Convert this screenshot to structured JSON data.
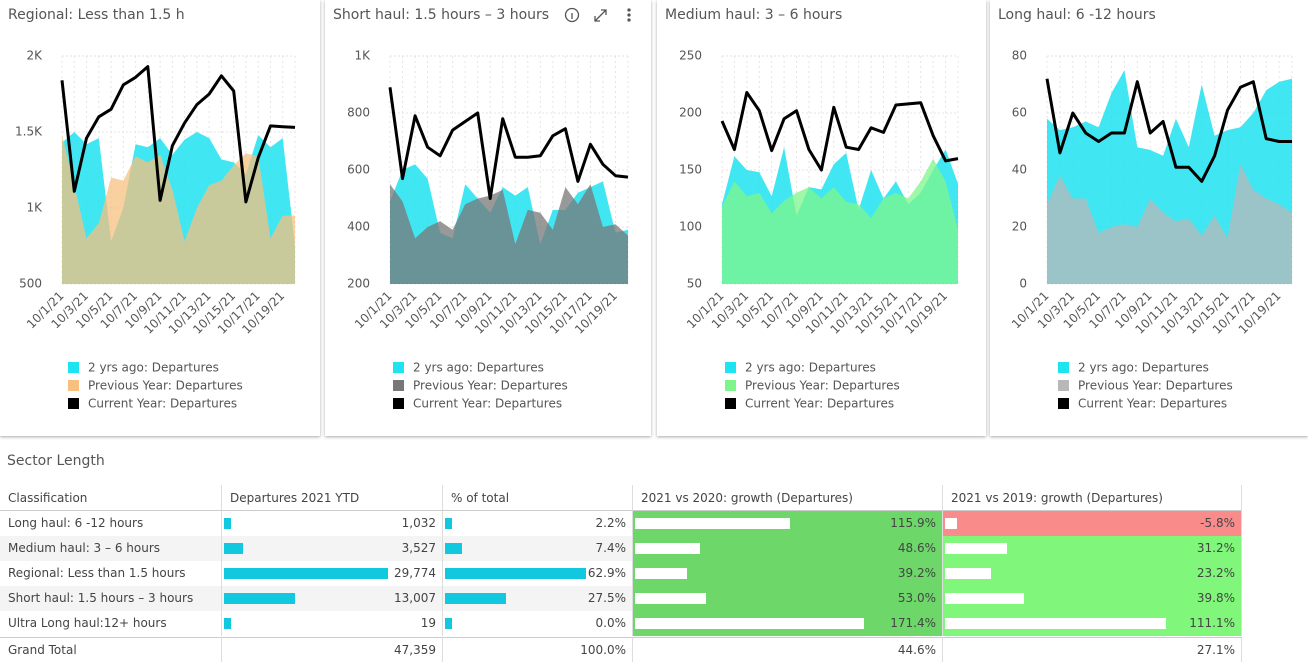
{
  "chart_data": [
    {
      "type": "area",
      "title": "Regional: Less than 1.5 h",
      "categories": [
        "10/1/21",
        null,
        "10/3/21",
        null,
        "10/5/21",
        null,
        "10/7/21",
        null,
        "10/9/21",
        null,
        "10/11/21",
        null,
        "10/13/21",
        null,
        "10/15/21",
        null,
        "10/17/21",
        null,
        "10/19/21",
        null
      ],
      "ylim": [
        500,
        2000
      ],
      "yticks": [
        500,
        {
          "value": 1000,
          "label": "1K"
        },
        {
          "value": 1500,
          "label": "1.5K"
        },
        {
          "value": 2000,
          "label": "2K"
        }
      ],
      "grid": true,
      "series": [
        {
          "name": "2 yrs ago: Departures",
          "color": "#1ee3f0",
          "values": [
            1430,
            1500,
            1420,
            1460,
            780,
            1000,
            1420,
            1400,
            1460,
            1350,
            1450,
            1500,
            1460,
            1320,
            1300,
            1220,
            1480,
            1400,
            1460,
            750
          ]
        },
        {
          "name": "Previous Year: Departures",
          "color": "#f7c07f",
          "values": [
            1480,
            1150,
            800,
            900,
            1200,
            1180,
            1340,
            1300,
            1350,
            1120,
            780,
            1000,
            1150,
            1180,
            1280,
            1360,
            1340,
            800,
            950,
            950
          ]
        },
        {
          "name": "Current Year: Departures",
          "color": "#000000",
          "style": "line",
          "values": [
            1840,
            1110,
            1460,
            1600,
            1650,
            1810,
            1860,
            1930,
            1050,
            1410,
            1560,
            1680,
            1750,
            1870,
            1770,
            1040,
            1330,
            1540,
            1535,
            1530
          ]
        }
      ]
    },
    {
      "type": "area",
      "title": "Short haul: 1.5 hours – 3 hours",
      "categories": [
        "10/1/21",
        null,
        "10/3/21",
        null,
        "10/5/21",
        null,
        "10/7/21",
        null,
        "10/9/21",
        null,
        "10/11/21",
        null,
        "10/13/21",
        null,
        "10/15/21",
        null,
        "10/17/21",
        null,
        "10/19/21",
        null
      ],
      "ylim": [
        200,
        1000
      ],
      "yticks": [
        200,
        400,
        600,
        800,
        {
          "value": 1000,
          "label": "1K"
        }
      ],
      "grid": true,
      "series": [
        {
          "name": "2 yrs ago: Departures",
          "color": "#1ee3f0",
          "values": [
            490,
            600,
            620,
            570,
            380,
            360,
            550,
            500,
            450,
            540,
            510,
            540,
            340,
            460,
            460,
            520,
            540,
            560,
            380,
            390
          ]
        },
        {
          "name": "Previous Year: Departures",
          "color": "#777777",
          "values": [
            550,
            490,
            360,
            400,
            420,
            390,
            480,
            500,
            510,
            530,
            340,
            460,
            450,
            390,
            540,
            480,
            550,
            400,
            410,
            370
          ]
        },
        {
          "name": "Current Year: Departures",
          "color": "#000000",
          "style": "line",
          "values": [
            890,
            570,
            790,
            680,
            650,
            740,
            770,
            800,
            500,
            780,
            645,
            645,
            650,
            720,
            745,
            560,
            690,
            620,
            580,
            575
          ]
        }
      ]
    },
    {
      "type": "area",
      "title": "Medium haul: 3 – 6 hours",
      "categories": [
        "10/1/21",
        null,
        "10/3/21",
        null,
        "10/5/21",
        null,
        "10/7/21",
        null,
        "10/9/21",
        null,
        "10/11/21",
        null,
        "10/13/21",
        null,
        "10/15/21",
        null,
        "10/17/21",
        null,
        "10/19/21",
        null
      ],
      "ylim": [
        50,
        250
      ],
      "yticks": [
        50,
        100,
        150,
        200,
        250
      ],
      "grid": true,
      "series": [
        {
          "name": "2 yrs ago: Departures",
          "color": "#1ee3f0",
          "values": [
            120,
            162,
            150,
            148,
            127,
            170,
            110,
            135,
            133,
            155,
            165,
            115,
            150,
            125,
            140,
            120,
            130,
            150,
            168,
            138
          ]
        },
        {
          "name": "Previous Year: Departures",
          "color": "#7ef58a",
          "values": [
            118,
            140,
            127,
            130,
            112,
            123,
            130,
            135,
            125,
            135,
            122,
            120,
            108,
            125,
            130,
            125,
            140,
            160,
            140,
            98
          ]
        },
        {
          "name": "Current Year: Departures",
          "color": "#000000",
          "style": "line",
          "values": [
            193,
            168,
            218,
            202,
            167,
            195,
            202,
            168,
            150,
            205,
            170,
            168,
            187,
            183,
            207,
            208,
            209,
            180,
            158,
            160
          ]
        }
      ]
    },
    {
      "type": "area",
      "title": "Long haul: 6 -12 hours",
      "categories": [
        "10/1/21",
        null,
        "10/3/21",
        null,
        "10/5/21",
        null,
        "10/7/21",
        null,
        "10/9/21",
        null,
        "10/11/21",
        null,
        "10/13/21",
        null,
        "10/15/21",
        null,
        "10/17/21",
        null,
        "10/19/21",
        null
      ],
      "ylim": [
        0,
        80
      ],
      "yticks": [
        0,
        20,
        40,
        60,
        80
      ],
      "grid": true,
      "series": [
        {
          "name": "2 yrs ago: Departures",
          "color": "#1ee3f0",
          "values": [
            58,
            54,
            55,
            57,
            55,
            67,
            75,
            48,
            47,
            45,
            58,
            48,
            70,
            52,
            54,
            55,
            60,
            68,
            71,
            72
          ]
        },
        {
          "name": "Previous Year: Departures",
          "color": "#b8b8b8",
          "values": [
            28,
            38,
            30,
            30,
            18,
            20,
            21,
            20,
            30,
            25,
            22,
            23,
            17,
            24,
            16,
            42,
            33,
            30,
            28,
            25
          ]
        },
        {
          "name": "Current Year: Departures",
          "color": "#000000",
          "style": "line",
          "values": [
            72,
            46,
            60,
            53,
            50,
            53,
            53,
            71,
            53,
            57,
            41,
            41,
            36,
            45,
            61,
            69,
            71,
            51,
            50,
            50
          ]
        }
      ]
    }
  ],
  "table": {
    "title": "Sector Length",
    "columns": [
      "Classification",
      "Departures 2021 YTD",
      "% of total",
      "2021 vs 2020: growth (Departures)",
      "2021 vs 2019: growth (Departures)"
    ],
    "rows": [
      [
        "Long haul: 6 -12 hours",
        {
          "value": 1032,
          "label": "1,032"
        },
        {
          "value": 2.2,
          "label": "2.2%"
        },
        {
          "value": 115.9,
          "label": "115.9%"
        },
        {
          "value": -5.8,
          "label": "-5.8%"
        }
      ],
      [
        "Medium haul: 3 – 6 hours",
        {
          "value": 3527,
          "label": "3,527"
        },
        {
          "value": 7.4,
          "label": "7.4%"
        },
        {
          "value": 48.6,
          "label": "48.6%"
        },
        {
          "value": 31.2,
          "label": "31.2%"
        }
      ],
      [
        "Regional: Less than 1.5 hours",
        {
          "value": 29774,
          "label": "29,774"
        },
        {
          "value": 62.9,
          "label": "62.9%"
        },
        {
          "value": 39.2,
          "label": "39.2%"
        },
        {
          "value": 23.2,
          "label": "23.2%"
        }
      ],
      [
        "Short haul: 1.5 hours – 3 hours",
        {
          "value": 13007,
          "label": "13,007"
        },
        {
          "value": 27.5,
          "label": "27.5%"
        },
        {
          "value": 53.0,
          "label": "53.0%"
        },
        {
          "value": 39.8,
          "label": "39.8%"
        }
      ],
      [
        "Ultra Long haul:12+ hours",
        {
          "value": 19,
          "label": "19"
        },
        {
          "value": 0.0,
          "label": "0.0%"
        },
        {
          "value": 171.4,
          "label": "171.4%"
        },
        {
          "value": 111.1,
          "label": "111.1%"
        }
      ]
    ],
    "total": [
      "Grand Total",
      "47,359",
      "100.0%",
      "44.6%",
      "27.1%"
    ]
  }
}
